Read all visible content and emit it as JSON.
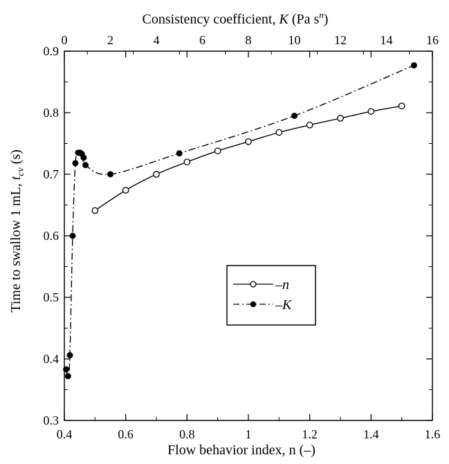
{
  "chart_data": {
    "type": "line",
    "xlabel": "Flow behavior index, n (–)",
    "x2label_parts": {
      "pre": "Consistency coefficient, ",
      "var": "K",
      "mid": " (Pa s",
      "sup": "n",
      "post": ")"
    },
    "ylabel_parts": {
      "pre": "Time to swallow 1 mL, ",
      "var": "t",
      "sub": "cv",
      "post": " (s)"
    },
    "xlim": [
      0.4,
      1.6
    ],
    "x2lim": [
      0,
      16
    ],
    "ylim": [
      0.3,
      0.9
    ],
    "xticks": [
      "0.4",
      "0.6",
      "0.8",
      "1",
      "1.2",
      "1.4",
      "1.6"
    ],
    "x2ticks": [
      "0",
      "2",
      "4",
      "6",
      "8",
      "10",
      "12",
      "14",
      "16"
    ],
    "yticks": [
      "0.3",
      "0.4",
      "0.5",
      "0.6",
      "0.7",
      "0.8",
      "0.9"
    ],
    "grid": false,
    "legend_position": "center-right",
    "series": [
      {
        "name": "–n",
        "axis": "bottom",
        "marker": "open-circle",
        "line": "solid",
        "x": [
          0.5,
          0.6,
          0.7,
          0.8,
          0.9,
          1.0,
          1.1,
          1.2,
          1.3,
          1.4,
          1.5
        ],
        "y": [
          0.641,
          0.674,
          0.7,
          0.72,
          0.738,
          0.753,
          0.768,
          0.78,
          0.791,
          0.802,
          0.811
        ]
      },
      {
        "name": "–K",
        "axis": "top",
        "marker": "filled-circle",
        "line": "dash-dot",
        "x": [
          0.08,
          0.16,
          0.24,
          0.36,
          0.48,
          0.6,
          0.68,
          0.76,
          0.84,
          0.92,
          2.0,
          5.0,
          10.0,
          15.2
        ],
        "y": [
          0.383,
          0.372,
          0.406,
          0.6,
          0.718,
          0.735,
          0.735,
          0.733,
          0.727,
          0.715,
          0.7,
          0.734,
          0.795,
          0.877
        ]
      }
    ]
  }
}
